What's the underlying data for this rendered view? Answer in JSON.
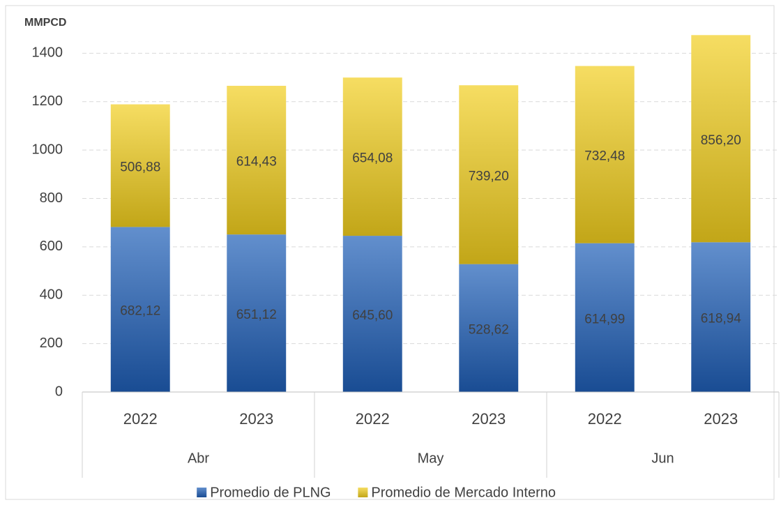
{
  "chart_data": {
    "type": "stacked_bar",
    "y_label": "MMPCD",
    "groups": [
      {
        "name": "Abr",
        "categories": [
          "2022",
          "2023"
        ]
      },
      {
        "name": "May",
        "categories": [
          "2022",
          "2023"
        ]
      },
      {
        "name": "Jun",
        "categories": [
          "2022",
          "2023"
        ]
      }
    ],
    "series": [
      {
        "name": "Promedio de PLNG",
        "color": "#1f5fb8",
        "values": [
          682.12,
          651.12,
          645.6,
          528.62,
          614.99,
          618.94
        ],
        "value_labels": [
          "682,12",
          "651,12",
          "645,60",
          "528,62",
          "614,99",
          "618,94"
        ]
      },
      {
        "name": "Promedio de Mercado Interno",
        "color": "#f2cf1e",
        "values": [
          506.88,
          614.43,
          654.08,
          739.2,
          732.48,
          856.2
        ],
        "value_labels": [
          "506,88",
          "614,43",
          "654,08",
          "739,20",
          "732,48",
          "856,20"
        ]
      }
    ],
    "ylim": [
      0,
      1600
    ],
    "yticks": [
      0,
      200,
      400,
      600,
      800,
      1000,
      1200,
      1400
    ],
    "grid": true,
    "legend": "bottom"
  }
}
